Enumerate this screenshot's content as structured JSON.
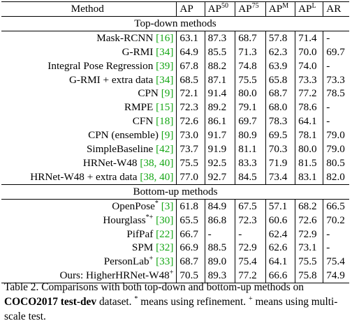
{
  "table": {
    "headers": {
      "method": "Method",
      "ap": "AP",
      "ap50_base": "AP",
      "ap50_sup": "50",
      "ap75_base": "AP",
      "ap75_sup": "75",
      "apm_base": "AP",
      "apm_sup": "M",
      "apl_base": "AP",
      "apl_sup": "L",
      "ar": "AR"
    },
    "top_down_title": "Top-down methods",
    "bottom_up_title": "Bottom-up methods",
    "top_down_rows": [
      {
        "name": "Mask-RCNN ",
        "cite": "[16]",
        "sup": "",
        "ap": "63.1",
        "ap50": "87.3",
        "ap75": "68.7",
        "apm": "57.8",
        "apl": "71.4",
        "ar": "-"
      },
      {
        "name": "G-RMI ",
        "cite": "[34]",
        "sup": "",
        "ap": "64.9",
        "ap50": "85.5",
        "ap75": "71.3",
        "apm": "62.3",
        "apl": "70.0",
        "ar": "69.7"
      },
      {
        "name": "Integral Pose Regression ",
        "cite": "[39]",
        "sup": "",
        "ap": "67.8",
        "ap50": "88.2",
        "ap75": "74.8",
        "apm": "63.9",
        "apl": "74.0",
        "ar": "-"
      },
      {
        "name": "G-RMI + extra data ",
        "cite": "[34]",
        "sup": "",
        "ap": "68.5",
        "ap50": "87.1",
        "ap75": "75.5",
        "apm": "65.8",
        "apl": "73.3",
        "ar": "73.3"
      },
      {
        "name": "CPN ",
        "cite": "[9]",
        "sup": "",
        "ap": "72.1",
        "ap50": "91.4",
        "ap75": "80.0",
        "apm": "68.7",
        "apl": "77.2",
        "ar": "78.5"
      },
      {
        "name": "RMPE ",
        "cite": "[15]",
        "sup": "",
        "ap": "72.3",
        "ap50": "89.2",
        "ap75": "79.1",
        "apm": "68.0",
        "apl": "78.6",
        "ar": "-"
      },
      {
        "name": "CFN ",
        "cite": "[18]",
        "sup": "",
        "ap": "72.6",
        "ap50": "86.1",
        "ap75": "69.7",
        "apm": "78.3",
        "apl": "64.1",
        "ar": "-"
      },
      {
        "name": "CPN (ensemble) ",
        "cite": "[9]",
        "sup": "",
        "ap": "73.0",
        "ap50": "91.7",
        "ap75": "80.9",
        "apm": "69.5",
        "apl": "78.1",
        "ar": "79.0"
      },
      {
        "name": "SimpleBaseline ",
        "cite": "[42]",
        "sup": "",
        "ap": "73.7",
        "ap50": "91.9",
        "ap75": "81.1",
        "apm": "70.3",
        "apl": "80.0",
        "ar": "79.0"
      },
      {
        "name": "HRNet-W48 ",
        "cite": "[38, 40]",
        "sup": "",
        "ap": "75.5",
        "ap50": "92.5",
        "ap75": "83.3",
        "apm": "71.9",
        "apl": "81.5",
        "ar": "80.5"
      },
      {
        "name": "HRNet-W48 + extra data ",
        "cite": "[38, 40]",
        "sup": "",
        "ap": "77.0",
        "ap50": "92.7",
        "ap75": "84.5",
        "apm": "73.4",
        "apl": "83.1",
        "ar": "82.0"
      }
    ],
    "bottom_up_rows": [
      {
        "name": "OpenPose",
        "sup": "*",
        "cite": "[3]",
        "ap": "61.8",
        "ap50": "84.9",
        "ap75": "67.5",
        "apm": "57.1",
        "apl": "68.2",
        "ar": "66.5"
      },
      {
        "name": "Hourglass",
        "sup": "*+",
        "cite": "[30]",
        "ap": "65.5",
        "ap50": "86.8",
        "ap75": "72.3",
        "apm": "60.6",
        "apl": "72.6",
        "ar": "70.2"
      },
      {
        "name": "PifPaf ",
        "sup": "",
        "cite": "[22]",
        "ap": "66.7",
        "ap50": "-",
        "ap75": "-",
        "apm": "62.4",
        "apl": "72.9",
        "ar": "-"
      },
      {
        "name": "SPM ",
        "sup": "",
        "cite": "[32]",
        "ap": "66.9",
        "ap50": "88.5",
        "ap75": "72.9",
        "apm": "62.6",
        "apl": "73.1",
        "ar": "-"
      },
      {
        "name": "PersonLab",
        "sup": "+",
        "cite": "[33]",
        "ap": "68.7",
        "ap50": "89.0",
        "ap75": "75.4",
        "apm": "64.1",
        "apl": "75.5",
        "ar": "75.4"
      },
      {
        "name": "Ours: HigherHRNet-W48",
        "sup": "+",
        "cite": "",
        "ap": "70.5",
        "ap50": "89.3",
        "ap75": "77.2",
        "apm": "66.6",
        "apl": "75.8",
        "ar": "74.9"
      }
    ]
  },
  "caption": {
    "part1": "Table 2. Comparisons with both top-down and bottom-up methods on ",
    "bold": "COCO2017 test-dev",
    "part2": " dataset. ",
    "star": "*",
    "part3": " means using refinement. ",
    "plus": "+",
    "part4": " means using multi-scale test."
  }
}
